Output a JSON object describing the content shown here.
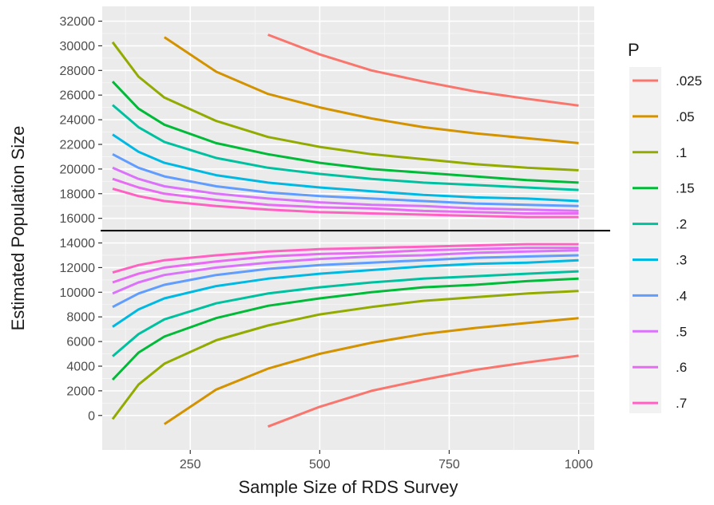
{
  "chart_data": {
    "type": "line",
    "xlabel": "Sample Size of RDS Survey",
    "ylabel": "Estimated Population Size",
    "xlim": [
      80,
      1030
    ],
    "ylim": [
      -2800,
      33200
    ],
    "x_ticks": [
      250,
      500,
      750,
      1000
    ],
    "x_tick_labels": [
      "250",
      "500",
      "750",
      "1000"
    ],
    "y_ticks": [
      0,
      2000,
      4000,
      6000,
      8000,
      10000,
      12000,
      14000,
      16000,
      18000,
      20000,
      22000,
      24000,
      26000,
      28000,
      30000,
      32000
    ],
    "y_tick_labels": [
      "0",
      "2000",
      "4000",
      "6000",
      "8000",
      "10000",
      "12000",
      "14000",
      "16000",
      "18000",
      "20000",
      "22000",
      "24000",
      "26000",
      "28000",
      "30000",
      "32000"
    ],
    "grid": true,
    "hline": 15000,
    "legend": {
      "title": "P",
      "position": "right"
    },
    "x": [
      100,
      150,
      200,
      300,
      400,
      500,
      600,
      700,
      800,
      900,
      1000
    ],
    "series": [
      {
        "name": ".025",
        "color": "#F8766D",
        "upper": [
          null,
          null,
          null,
          null,
          30900,
          29300,
          28000,
          27100,
          26300,
          25700,
          25150
        ],
        "lower": [
          null,
          null,
          null,
          null,
          -900,
          700,
          2000,
          2900,
          3700,
          4300,
          4850
        ]
      },
      {
        "name": ".05",
        "color": "#D39200",
        "upper": [
          null,
          null,
          30700,
          27900,
          26100,
          25000,
          24100,
          23400,
          22900,
          22500,
          22100
        ],
        "lower": [
          null,
          null,
          -700,
          2100,
          3800,
          5000,
          5900,
          6600,
          7100,
          7500,
          7900
        ]
      },
      {
        "name": ".1",
        "color": "#93AA00",
        "upper": [
          30300,
          27500,
          25800,
          23900,
          22600,
          21800,
          21200,
          20800,
          20400,
          20100,
          19900
        ],
        "lower": [
          -300,
          2500,
          4200,
          6100,
          7300,
          8200,
          8800,
          9300,
          9600,
          9900,
          10100
        ]
      },
      {
        "name": ".15",
        "color": "#00BA38",
        "upper": [
          27100,
          24900,
          23600,
          22100,
          21200,
          20500,
          20000,
          19700,
          19400,
          19100,
          18900
        ],
        "lower": [
          2900,
          5100,
          6400,
          7900,
          8900,
          9500,
          10000,
          10400,
          10600,
          10900,
          11100
        ]
      },
      {
        "name": ".2",
        "color": "#00C19F",
        "upper": [
          25200,
          23400,
          22200,
          20900,
          20100,
          19600,
          19200,
          18900,
          18700,
          18500,
          18300
        ],
        "lower": [
          4800,
          6600,
          7800,
          9100,
          9900,
          10400,
          10800,
          11100,
          11300,
          11500,
          11700
        ]
      },
      {
        "name": ".3",
        "color": "#00B9E3",
        "upper": [
          22800,
          21400,
          20500,
          19500,
          18900,
          18500,
          18200,
          17900,
          17700,
          17600,
          17400
        ],
        "lower": [
          7200,
          8600,
          9500,
          10500,
          11100,
          11500,
          11800,
          12100,
          12300,
          12400,
          12600
        ]
      },
      {
        "name": ".4",
        "color": "#619CFF",
        "upper": [
          21200,
          20100,
          19400,
          18600,
          18100,
          17800,
          17600,
          17400,
          17200,
          17100,
          17000
        ],
        "lower": [
          8800,
          9900,
          10600,
          11400,
          11900,
          12200,
          12400,
          12600,
          12800,
          12900,
          13000
        ]
      },
      {
        "name": ".5",
        "color": "#DB72FB",
        "upper": [
          20100,
          19200,
          18600,
          18000,
          17600,
          17300,
          17100,
          17000,
          16800,
          16700,
          16600
        ],
        "lower": [
          9900,
          10800,
          11400,
          12000,
          12400,
          12700,
          12900,
          13000,
          13200,
          13300,
          13400
        ]
      },
      {
        "name": ".6",
        "color": "#E76BF3",
        "upper": [
          19200,
          18500,
          18000,
          17500,
          17100,
          16900,
          16800,
          16600,
          16500,
          16400,
          16400
        ],
        "lower": [
          10800,
          11500,
          12000,
          12500,
          12900,
          13100,
          13200,
          13400,
          13500,
          13600,
          13600
        ]
      },
      {
        "name": ".7",
        "color": "#FF61C3",
        "upper": [
          18400,
          17800,
          17400,
          17000,
          16700,
          16500,
          16400,
          16300,
          16200,
          16100,
          16100
        ],
        "lower": [
          11600,
          12200,
          12600,
          13000,
          13300,
          13500,
          13600,
          13700,
          13800,
          13900,
          13900
        ]
      }
    ]
  }
}
